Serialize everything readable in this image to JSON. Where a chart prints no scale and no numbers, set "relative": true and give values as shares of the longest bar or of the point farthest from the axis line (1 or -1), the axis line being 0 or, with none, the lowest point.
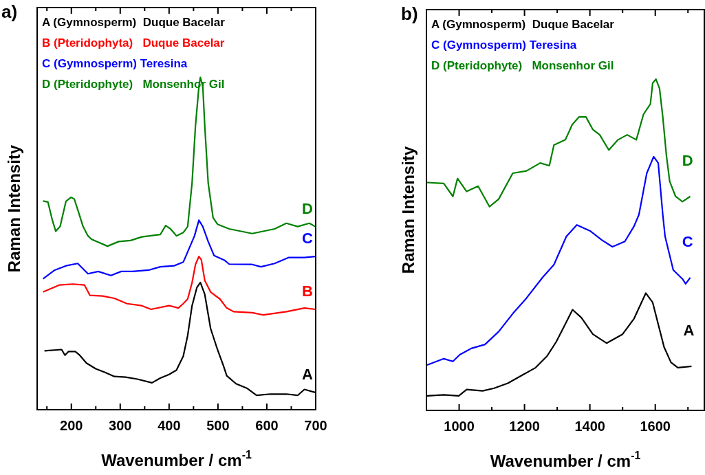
{
  "chart_data": [
    {
      "type": "line",
      "title": "a)",
      "xlabel": "Wavenumber / cm$^{-1}$",
      "ylabel": "Raman Intensity",
      "relative": true,
      "legend": "top left",
      "xlim": [
        130,
        700
      ],
      "xticks": [
        {
          "value": 150,
          "label": null
        },
        200,
        {
          "value": 250,
          "label": null
        },
        300,
        {
          "value": 350,
          "label": null
        },
        400,
        {
          "value": 450,
          "label": null
        },
        500,
        {
          "value": 550,
          "label": null
        },
        600,
        {
          "value": 650,
          "label": null
        },
        700
      ],
      "series": [
        {
          "name": "A (Gymnosperm)  Duque Bacelar",
          "color": "#000000",
          "x": [
            145,
            180,
            187,
            194,
            208,
            217,
            231,
            250,
            269,
            288,
            311,
            335,
            365,
            382,
            400,
            415,
            429,
            438,
            447,
            457,
            464,
            473,
            485,
            499,
            511,
            518,
            537,
            560,
            579,
            607,
            640,
            663,
            677,
            699
          ],
          "values": [
            0.177,
            0.181,
            0.164,
            0.175,
            0.175,
            0.164,
            0.14,
            0.123,
            0.112,
            0.1,
            0.098,
            0.092,
            0.081,
            0.095,
            0.106,
            0.119,
            0.161,
            0.223,
            0.313,
            0.368,
            0.383,
            0.347,
            0.244,
            0.181,
            0.133,
            0.102,
            0.078,
            0.064,
            0.043,
            0.047,
            0.047,
            0.043,
            0.061,
            0.052
          ]
        },
        {
          "name": "B (Pteridophyta)   Duque Bacelar",
          "color": "#ff0000",
          "x": [
            142,
            175,
            203,
            227,
            238,
            264,
            288,
            314,
            344,
            363,
            400,
            419,
            429,
            438,
            447,
            454,
            461,
            466,
            473,
            485,
            504,
            518,
            532,
            570,
            593,
            640,
            677,
            699
          ],
          "values": [
            0.354,
            0.375,
            0.378,
            0.375,
            0.344,
            0.342,
            0.335,
            0.319,
            0.313,
            0.302,
            0.313,
            0.306,
            0.319,
            0.333,
            0.382,
            0.437,
            0.461,
            0.451,
            0.389,
            0.354,
            0.333,
            0.306,
            0.295,
            0.292,
            0.285,
            0.295,
            0.306,
            0.302
          ]
        },
        {
          "name": "C (Gymnosperm) Teresina",
          "color": "#0000ff",
          "x": [
            142,
            166,
            189,
            213,
            234,
            255,
            281,
            302,
            325,
            358,
            382,
            410,
            429,
            443,
            452,
            461,
            469,
            480,
            492,
            513,
            523,
            570,
            588,
            616,
            645,
            677,
            699
          ],
          "values": [
            0.394,
            0.42,
            0.433,
            0.44,
            0.409,
            0.416,
            0.404,
            0.416,
            0.416,
            0.42,
            0.43,
            0.433,
            0.444,
            0.492,
            0.523,
            0.57,
            0.551,
            0.506,
            0.464,
            0.45,
            0.438,
            0.437,
            0.43,
            0.44,
            0.458,
            0.458,
            0.461
          ]
        },
        {
          "name": "D (Pteridophyte)   Monsenhor Gil",
          "color": "#008000",
          "x": [
            142,
            152,
            161,
            168,
            177,
            189,
            199,
            206,
            213,
            224,
            234,
            241,
            274,
            297,
            321,
            344,
            382,
            393,
            403,
            415,
            429,
            438,
            447,
            454,
            461,
            464,
            469,
            473,
            480,
            490,
            499,
            523,
            570,
            616,
            640,
            663,
            687,
            699
          ],
          "values": [
            0.628,
            0.625,
            0.571,
            0.537,
            0.551,
            0.627,
            0.639,
            0.634,
            0.602,
            0.551,
            0.523,
            0.513,
            0.492,
            0.506,
            0.509,
            0.52,
            0.527,
            0.554,
            0.544,
            0.523,
            0.533,
            0.551,
            0.682,
            0.854,
            0.972,
            1.0,
            0.972,
            0.854,
            0.682,
            0.578,
            0.558,
            0.544,
            0.53,
            0.544,
            0.561,
            0.551,
            0.561,
            0.551
          ]
        }
      ],
      "annotations": [
        "A",
        "B",
        "C",
        "D"
      ]
    },
    {
      "type": "line",
      "title": "b)",
      "xlabel": "Wavenumber / cm$^{-1}$",
      "ylabel": "Raman Intensity",
      "relative": true,
      "legend": "top left",
      "xlim": [
        900,
        1750
      ],
      "xticks": [
        1000,
        {
          "value": 1100,
          "label": null
        },
        1200,
        {
          "value": 1300,
          "label": null
        },
        1400,
        {
          "value": 1500,
          "label": null
        },
        1600,
        {
          "value": 1700,
          "label": null
        }
      ],
      "series": [
        {
          "name": "A (Gymnosperm)  Duque Bacelar",
          "color": "#000000",
          "x": [
            902,
            953,
            999,
            1023,
            1072,
            1107,
            1149,
            1192,
            1234,
            1269,
            1297,
            1325,
            1347,
            1374,
            1409,
            1451,
            1500,
            1535,
            1571,
            1592,
            1613,
            1627,
            1648,
            1669,
            1711
          ],
          "values": [
            0.044,
            0.047,
            0.044,
            0.063,
            0.059,
            0.067,
            0.082,
            0.106,
            0.129,
            0.164,
            0.207,
            0.261,
            0.304,
            0.28,
            0.23,
            0.203,
            0.23,
            0.277,
            0.354,
            0.326,
            0.245,
            0.191,
            0.145,
            0.129,
            0.133
          ]
        },
        {
          "name": "C (Gymnosperm) Teresina",
          "color": "#0000ff",
          "x": [
            902,
            953,
            981,
            1002,
            1037,
            1079,
            1121,
            1164,
            1206,
            1255,
            1290,
            1328,
            1360,
            1402,
            1437,
            1469,
            1507,
            1535,
            1550,
            1574,
            1595,
            1609,
            1623,
            1630,
            1655,
            1683,
            1693,
            1707
          ],
          "values": [
            0.137,
            0.156,
            0.148,
            0.168,
            0.187,
            0.199,
            0.238,
            0.292,
            0.339,
            0.401,
            0.44,
            0.525,
            0.56,
            0.541,
            0.514,
            0.494,
            0.51,
            0.556,
            0.591,
            0.716,
            0.766,
            0.747,
            0.591,
            0.525,
            0.424,
            0.397,
            0.382,
            0.401
          ]
        },
        {
          "name": "D (Pteridophyte)   Monsenhor Gil",
          "color": "#008000",
          "x": [
            902,
            953,
            981,
            995,
            1023,
            1058,
            1093,
            1121,
            1164,
            1206,
            1248,
            1276,
            1290,
            1325,
            1346,
            1367,
            1388,
            1409,
            1430,
            1458,
            1486,
            1514,
            1542,
            1564,
            1585,
            1592,
            1602,
            1613,
            1623,
            1634,
            1644,
            1662,
            1683,
            1707
          ],
          "values": [
            0.688,
            0.685,
            0.646,
            0.7,
            0.661,
            0.677,
            0.615,
            0.638,
            0.716,
            0.723,
            0.747,
            0.739,
            0.801,
            0.817,
            0.863,
            0.886,
            0.886,
            0.848,
            0.832,
            0.786,
            0.817,
            0.832,
            0.817,
            0.894,
            0.925,
            0.988,
            1.0,
            0.972,
            0.886,
            0.77,
            0.692,
            0.646,
            0.63,
            0.646
          ]
        }
      ],
      "annotations": [
        "A",
        "C",
        "D"
      ]
    }
  ]
}
